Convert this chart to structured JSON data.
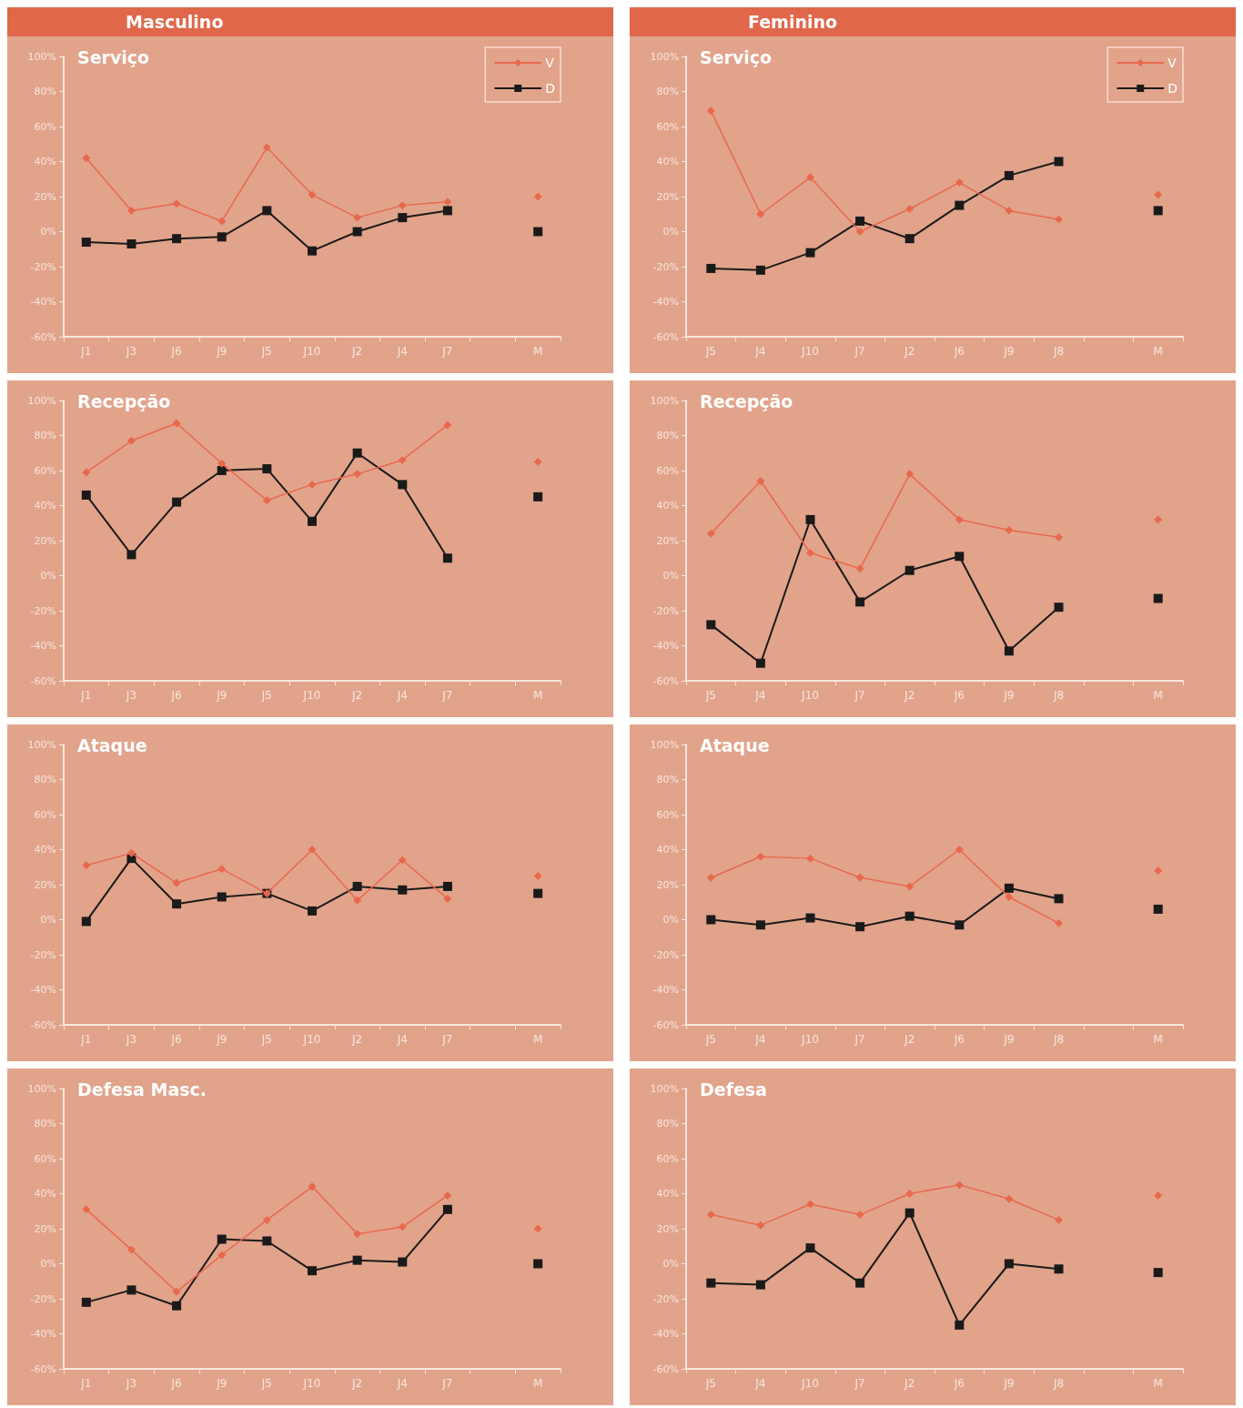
{
  "chart_data": [
    {
      "type": "line",
      "subtitle": "Masculino",
      "title": "Serviço",
      "categories": [
        "J1",
        "J3",
        "J6",
        "J9",
        "J5",
        "J10",
        "J2",
        "J4",
        "J7",
        null,
        "M"
      ],
      "legend": "top right",
      "ylim": [
        -60,
        100
      ],
      "yticks": [
        {
          "value": -60,
          "label": "-60%"
        },
        {
          "value": -40,
          "label": "-40%"
        },
        {
          "value": -20,
          "label": "-20%"
        },
        {
          "value": 0,
          "label": "0%"
        },
        {
          "value": 20,
          "label": "20%"
        },
        {
          "value": 40,
          "label": "40%"
        },
        {
          "value": 60,
          "label": "60%"
        },
        {
          "value": 80,
          "label": "80%"
        },
        {
          "value": 100,
          "label": "100%"
        }
      ],
      "grid": false,
      "series": [
        {
          "name": "V",
          "color": "#e8684e",
          "marker": "diamond",
          "values": [
            42,
            12,
            16,
            6,
            48,
            21,
            8,
            15,
            17,
            null,
            20
          ]
        },
        {
          "name": "D",
          "color": "#1a1a1a",
          "marker": "square",
          "values": [
            -6,
            -7,
            -4,
            -3,
            12,
            -11,
            0,
            8,
            12,
            null,
            0
          ]
        }
      ]
    },
    {
      "type": "line",
      "subtitle": "Feminino",
      "title": "Serviço",
      "categories": [
        "J5",
        "J4",
        "J10",
        "J7",
        "J2",
        "J6",
        "J9",
        "J8",
        null,
        "M"
      ],
      "legend": "top right",
      "ylim": [
        -60,
        100
      ],
      "yticks": [
        {
          "value": -60,
          "label": "-60%"
        },
        {
          "value": -40,
          "label": "-40%"
        },
        {
          "value": -20,
          "label": "-20%"
        },
        {
          "value": 0,
          "label": "0%"
        },
        {
          "value": 20,
          "label": "20%"
        },
        {
          "value": 40,
          "label": "40%"
        },
        {
          "value": 60,
          "label": "60%"
        },
        {
          "value": 80,
          "label": "80%"
        },
        {
          "value": 100,
          "label": "100%"
        }
      ],
      "grid": false,
      "series": [
        {
          "name": "V",
          "color": "#e8684e",
          "marker": "diamond",
          "values": [
            69,
            10,
            31,
            0,
            13,
            28,
            12,
            7,
            null,
            21
          ]
        },
        {
          "name": "D",
          "color": "#1a1a1a",
          "marker": "square",
          "values": [
            -21,
            -22,
            -12,
            6,
            -4,
            15,
            32,
            40,
            null,
            12
          ]
        }
      ]
    },
    {
      "type": "line",
      "title": "Recepção",
      "categories": [
        "J1",
        "J3",
        "J6",
        "J9",
        "J5",
        "J10",
        "J2",
        "J4",
        "J7",
        null,
        "M"
      ],
      "ylim": [
        -60,
        100
      ],
      "yticks": [
        {
          "value": -60,
          "label": "-60%"
        },
        {
          "value": -40,
          "label": "-40%"
        },
        {
          "value": -20,
          "label": "-20%"
        },
        {
          "value": 0,
          "label": "0%"
        },
        {
          "value": 20,
          "label": "20%"
        },
        {
          "value": 40,
          "label": "40%"
        },
        {
          "value": 60,
          "label": "60%"
        },
        {
          "value": 80,
          "label": "80%"
        },
        {
          "value": 100,
          "label": "100%"
        }
      ],
      "grid": false,
      "series": [
        {
          "color": "#e8684e",
          "marker": "diamond",
          "values": [
            59,
            77,
            87,
            64,
            43,
            52,
            58,
            66,
            86,
            null,
            65
          ]
        },
        {
          "color": "#1a1a1a",
          "marker": "square",
          "values": [
            46,
            12,
            42,
            60,
            61,
            31,
            70,
            52,
            10,
            null,
            45
          ]
        }
      ]
    },
    {
      "type": "line",
      "title": "Recepção",
      "categories": [
        "J5",
        "J4",
        "J10",
        "J7",
        "J2",
        "J6",
        "J9",
        "J8",
        null,
        "M"
      ],
      "ylim": [
        -60,
        100
      ],
      "yticks": [
        {
          "value": -60,
          "label": "-60%"
        },
        {
          "value": -40,
          "label": "-40%"
        },
        {
          "value": -20,
          "label": "-20%"
        },
        {
          "value": 0,
          "label": "0%"
        },
        {
          "value": 20,
          "label": "20%"
        },
        {
          "value": 40,
          "label": "40%"
        },
        {
          "value": 60,
          "label": "60%"
        },
        {
          "value": 80,
          "label": "80%"
        },
        {
          "value": 100,
          "label": "100%"
        }
      ],
      "grid": false,
      "series": [
        {
          "color": "#e8684e",
          "marker": "diamond",
          "values": [
            24,
            54,
            13,
            4,
            58,
            32,
            26,
            22,
            null,
            32
          ]
        },
        {
          "color": "#1a1a1a",
          "marker": "square",
          "values": [
            -28,
            -50,
            32,
            -15,
            3,
            11,
            -43,
            -18,
            null,
            -13
          ]
        }
      ]
    },
    {
      "type": "line",
      "title": "Ataque",
      "categories": [
        "J1",
        "J3",
        "J6",
        "J9",
        "J5",
        "J10",
        "J2",
        "J4",
        "J7",
        null,
        "M"
      ],
      "ylim": [
        -60,
        100
      ],
      "yticks": [
        {
          "value": -60,
          "label": "-60%"
        },
        {
          "value": -40,
          "label": "-40%"
        },
        {
          "value": -20,
          "label": "-20%"
        },
        {
          "value": 0,
          "label": "0%"
        },
        {
          "value": 20,
          "label": "20%"
        },
        {
          "value": 40,
          "label": "40%"
        },
        {
          "value": 60,
          "label": "60%"
        },
        {
          "value": 80,
          "label": "80%"
        },
        {
          "value": 100,
          "label": "100%"
        }
      ],
      "grid": false,
      "series": [
        {
          "color": "#e8684e",
          "marker": "diamond",
          "values": [
            31,
            38,
            21,
            29,
            15,
            40,
            11,
            34,
            12,
            null,
            25
          ]
        },
        {
          "color": "#1a1a1a",
          "marker": "square",
          "values": [
            -1,
            35,
            9,
            13,
            15,
            5,
            19,
            17,
            19,
            null,
            15
          ]
        }
      ]
    },
    {
      "type": "line",
      "title": "Ataque",
      "categories": [
        "J5",
        "J4",
        "J10",
        "J7",
        "J2",
        "J6",
        "J9",
        "J8",
        null,
        "M"
      ],
      "ylim": [
        -60,
        100
      ],
      "yticks": [
        {
          "value": -60,
          "label": "-60%"
        },
        {
          "value": -40,
          "label": "-40%"
        },
        {
          "value": -20,
          "label": "-20%"
        },
        {
          "value": 0,
          "label": "0%"
        },
        {
          "value": 20,
          "label": "20%"
        },
        {
          "value": 40,
          "label": "40%"
        },
        {
          "value": 60,
          "label": "60%"
        },
        {
          "value": 80,
          "label": "80%"
        },
        {
          "value": 100,
          "label": "100%"
        }
      ],
      "grid": false,
      "series": [
        {
          "color": "#e8684e",
          "marker": "diamond",
          "values": [
            24,
            36,
            35,
            24,
            19,
            40,
            13,
            -2,
            null,
            28
          ]
        },
        {
          "color": "#1a1a1a",
          "marker": "square",
          "values": [
            0,
            -3,
            1,
            -4,
            2,
            -3,
            18,
            12,
            null,
            6
          ]
        }
      ]
    },
    {
      "type": "line",
      "title": "Defesa Masc.",
      "categories": [
        "J1",
        "J3",
        "J6",
        "J9",
        "J5",
        "J10",
        "J2",
        "J4",
        "J7",
        null,
        "M"
      ],
      "ylim": [
        -60,
        100
      ],
      "yticks": [
        {
          "value": -60,
          "label": "-60%"
        },
        {
          "value": -40,
          "label": "-40%"
        },
        {
          "value": -20,
          "label": "-20%"
        },
        {
          "value": 0,
          "label": "0%"
        },
        {
          "value": 20,
          "label": "20%"
        },
        {
          "value": 40,
          "label": "40%"
        },
        {
          "value": 60,
          "label": "60%"
        },
        {
          "value": 80,
          "label": "80%"
        },
        {
          "value": 100,
          "label": "100%"
        }
      ],
      "grid": false,
      "series": [
        {
          "color": "#e8684e",
          "marker": "diamond",
          "values": [
            31,
            8,
            -16,
            5,
            25,
            44,
            17,
            21,
            39,
            null,
            20
          ]
        },
        {
          "color": "#1a1a1a",
          "marker": "square",
          "values": [
            -22,
            -15,
            -24,
            14,
            13,
            -4,
            2,
            1,
            31,
            null,
            0
          ]
        }
      ]
    },
    {
      "type": "line",
      "title": "Defesa",
      "categories": [
        "J5",
        "J4",
        "J10",
        "J7",
        "J2",
        "J6",
        "J9",
        "J8",
        null,
        "M"
      ],
      "ylim": [
        -60,
        100
      ],
      "yticks": [
        {
          "value": -60,
          "label": "-60%"
        },
        {
          "value": -40,
          "label": "-40%"
        },
        {
          "value": -20,
          "label": "-20%"
        },
        {
          "value": 0,
          "label": "0%"
        },
        {
          "value": 20,
          "label": "20%"
        },
        {
          "value": 40,
          "label": "40%"
        },
        {
          "value": 60,
          "label": "60%"
        },
        {
          "value": 80,
          "label": "80%"
        },
        {
          "value": 100,
          "label": "100%"
        }
      ],
      "grid": false,
      "series": [
        {
          "color": "#e8684e",
          "marker": "diamond",
          "values": [
            28,
            22,
            34,
            28,
            40,
            45,
            37,
            25,
            null,
            39
          ]
        },
        {
          "color": "#1a1a1a",
          "marker": "square",
          "values": [
            -11,
            -12,
            9,
            -11,
            29,
            -35,
            0,
            -3,
            null,
            -5
          ]
        }
      ]
    }
  ]
}
